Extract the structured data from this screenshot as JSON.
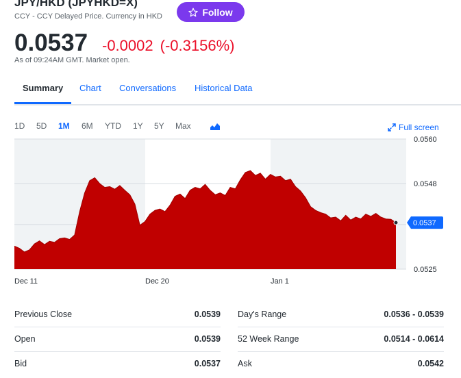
{
  "header": {
    "title": "JPY/HKD (JPYHKD=X)",
    "subtitle": "CCY - CCY Delayed Price. Currency in HKD",
    "follow_label": "Follow"
  },
  "quote": {
    "price": "0.0537",
    "change": "-0.0002",
    "change_percent": "(-0.3156%)",
    "as_of": "As of 09:24AM GMT. Market open."
  },
  "tabs": [
    "Summary",
    "Chart",
    "Conversations",
    "Historical Data"
  ],
  "ranges": [
    "1D",
    "5D",
    "1M",
    "6M",
    "YTD",
    "1Y",
    "5Y",
    "Max"
  ],
  "active_range": "1M",
  "full_screen_label": "Full screen",
  "colors": {
    "accent": "#0f69ff",
    "follow": "#7b39ed",
    "negative": "#eb0f29",
    "area": "#c00000"
  },
  "chart_data": {
    "type": "area",
    "y_ticks": [
      "0.0560",
      "0.0548",
      "0.0537",
      "0.0525"
    ],
    "x_ticks": [
      "Dec 11",
      "Dec 20",
      "Jan 1"
    ],
    "current_label": "0.0537",
    "ylim": [
      0.0525,
      0.056
    ],
    "values": [
      0.05312,
      0.05306,
      0.05296,
      0.05302,
      0.05318,
      0.05326,
      0.05316,
      0.05325,
      0.05322,
      0.05332,
      0.05334,
      0.0533,
      0.05342,
      0.05405,
      0.05455,
      0.05488,
      0.05496,
      0.0548,
      0.0547,
      0.05472,
      0.05465,
      0.05475,
      0.05462,
      0.0545,
      0.05425,
      0.05368,
      0.05378,
      0.05398,
      0.05408,
      0.05412,
      0.05405,
      0.05422,
      0.05446,
      0.05452,
      0.0544,
      0.05462,
      0.0547,
      0.05466,
      0.05478,
      0.05462,
      0.0545,
      0.05455,
      0.05448,
      0.0547,
      0.05466,
      0.0549,
      0.0551,
      0.05515,
      0.05502,
      0.05508,
      0.05492,
      0.05505,
      0.05498,
      0.055,
      0.05488,
      0.05492,
      0.05472,
      0.0546,
      0.05442,
      0.05418,
      0.05408,
      0.05402,
      0.05398,
      0.05388,
      0.0539,
      0.0538,
      0.05395,
      0.05382,
      0.0539,
      0.05385,
      0.05398,
      0.05392,
      0.054,
      0.0539,
      0.05385,
      0.05384,
      0.05375
    ],
    "marker": {
      "label": "0.0537",
      "value": 0.05375
    }
  },
  "stats": [
    {
      "label": "Previous Close",
      "value": "0.0539"
    },
    {
      "label": "Day's Range",
      "value": "0.0536 - 0.0539"
    },
    {
      "label": "Open",
      "value": "0.0539"
    },
    {
      "label": "52 Week Range",
      "value": "0.0514 - 0.0614"
    },
    {
      "label": "Bid",
      "value": "0.0537"
    },
    {
      "label": "Ask",
      "value": "0.0542"
    }
  ]
}
